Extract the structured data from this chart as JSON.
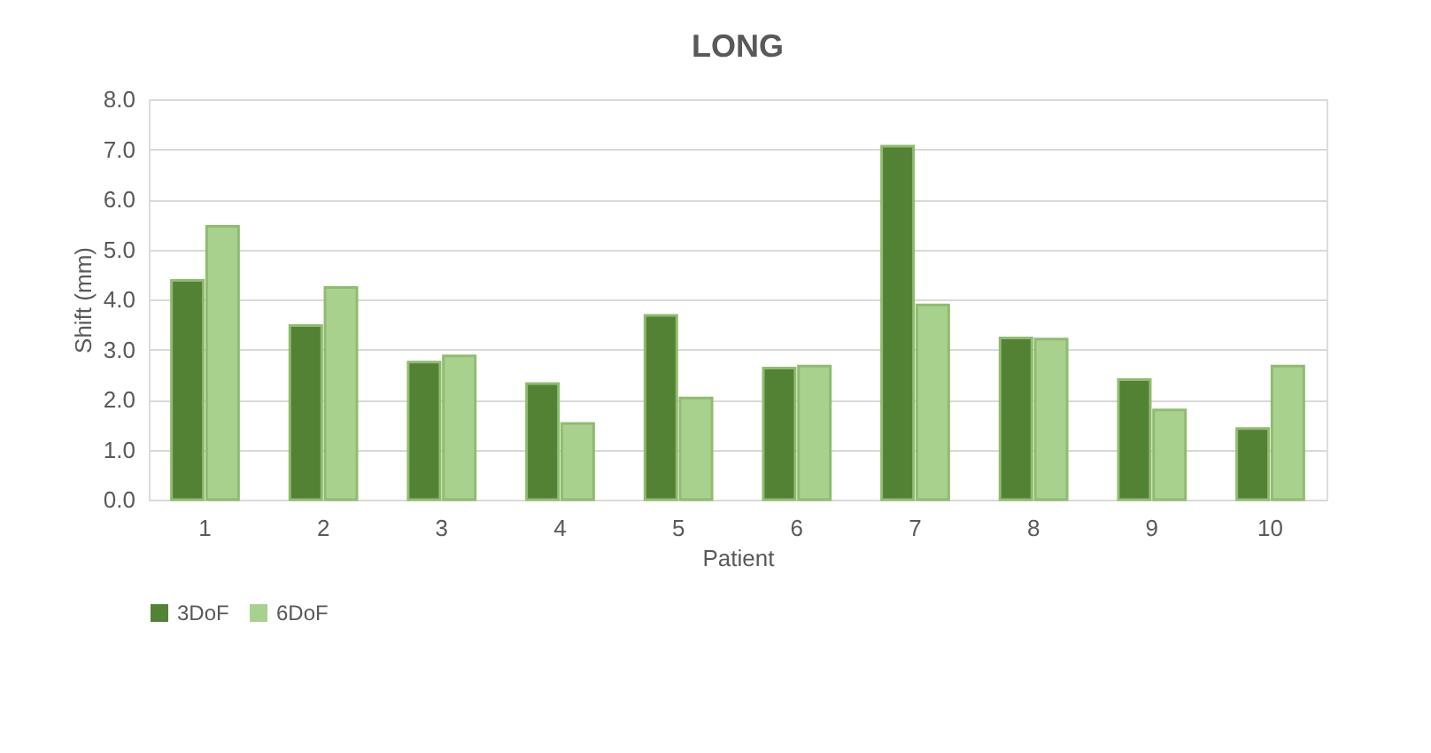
{
  "chart_data": {
    "type": "bar",
    "title": "LONG",
    "xlabel": "Patient",
    "ylabel": "Shift (mm)",
    "categories": [
      "1",
      "2",
      "3",
      "4",
      "5",
      "6",
      "7",
      "8",
      "9",
      "10"
    ],
    "series": [
      {
        "name": "3DoF",
        "color": "#548235",
        "values": [
          4.38,
          3.48,
          2.75,
          2.32,
          3.68,
          2.63,
          7.06,
          3.23,
          2.4,
          1.42
        ]
      },
      {
        "name": "6DoF",
        "color": "#a9d18e",
        "values": [
          5.46,
          4.24,
          2.87,
          1.52,
          2.03,
          2.67,
          3.89,
          3.21,
          1.79,
          2.67
        ]
      }
    ],
    "ylim": [
      0,
      8
    ],
    "yticks": [
      {
        "value": 0,
        "label": "0.0"
      },
      {
        "value": 1,
        "label": "1.0"
      },
      {
        "value": 2,
        "label": "2.0"
      },
      {
        "value": 3,
        "label": "3.0"
      },
      {
        "value": 4,
        "label": "4.0"
      },
      {
        "value": 5,
        "label": "5.0"
      },
      {
        "value": 6,
        "label": "6.0"
      },
      {
        "value": 7,
        "label": "7.0"
      },
      {
        "value": 8,
        "label": "8.0"
      }
    ],
    "grid": "y",
    "legend": "bottom"
  }
}
